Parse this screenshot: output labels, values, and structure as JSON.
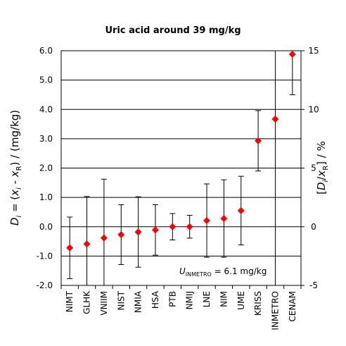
{
  "chart_data": {
    "type": "scatter",
    "title": "Uric acid around 39 mg/kg",
    "ylabel_left": {
      "D": "D",
      "i": "i",
      "eq": " = (",
      "x1": "x",
      "x1sub": "i",
      "minus": " - ",
      "x2": "x",
      "x2sub": "R",
      "tail": ") / (mg/kg)"
    },
    "ylabel_right": {
      "open": "[",
      "D": "D",
      "i": "i",
      "slash": "/",
      "x": "x",
      "xsub": "R",
      "tail": "] / %"
    },
    "annotation": {
      "U": "U",
      "sub": "INMETRO",
      "rest": " = 6.1 mg/kg"
    },
    "ylim_left": [
      -2.0,
      6.0
    ],
    "ylim_right": [
      -5,
      15
    ],
    "yticks_left": [
      "-2.0",
      "-1.0",
      "0.0",
      "1.0",
      "2.0",
      "3.0",
      "4.0",
      "5.0",
      "6.0"
    ],
    "yticks_right": [
      "-5",
      "0",
      "5",
      "10",
      "15"
    ],
    "gridlines": "horizontal",
    "marker_color": "#ff0000",
    "categories": [
      "NIMT",
      "GLHK",
      "VNIIM",
      "NIST",
      "NMIA",
      "HSA",
      "PTB",
      "NMIJ",
      "LNE",
      "NIM",
      "UME",
      "KRISS",
      "INMETRO",
      "CENAM"
    ],
    "values": [
      -0.72,
      -0.59,
      -0.38,
      -0.27,
      -0.18,
      -0.11,
      0.0,
      0.0,
      0.21,
      0.28,
      0.55,
      2.93,
      3.67,
      5.88
    ],
    "uncertainty": [
      1.05,
      1.62,
      2.0,
      1.02,
      1.2,
      0.86,
      0.45,
      0.39,
      1.25,
      1.32,
      1.17,
      1.03,
      6.1,
      1.38
    ]
  }
}
